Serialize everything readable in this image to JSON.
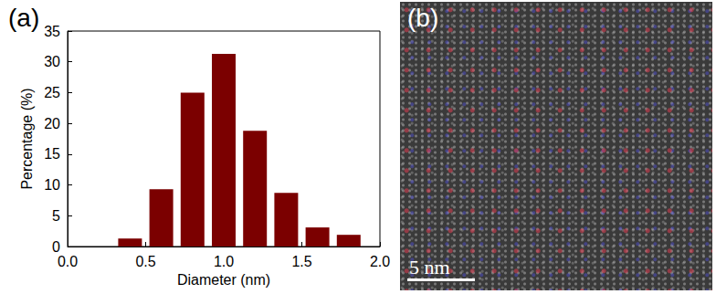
{
  "chart_data": {
    "type": "histogram",
    "title": "(a)",
    "x_label": "Diameter (nm)",
    "y_label": "Percentage (%)",
    "bins": [
      0.3,
      0.5,
      0.7,
      0.9,
      1.1,
      1.3,
      1.5,
      1.7,
      1.9
    ],
    "values": [
      1.3,
      9.3,
      25.0,
      31.3,
      18.8,
      8.7,
      3.1,
      1.9
    ],
    "color": "#7b0000",
    "xlim": [
      0,
      2.0
    ],
    "xticks": [
      {
        "value": 0,
        "label": "0.0"
      },
      {
        "value": 0.5,
        "label": "0.5"
      },
      {
        "value": 1.0,
        "label": "1.0"
      },
      {
        "value": 1.5,
        "label": "1.5"
      },
      {
        "value": 2.0,
        "label": "2.0"
      }
    ],
    "ylim": [
      0,
      35
    ],
    "yticks": [
      0,
      5,
      10,
      15,
      20,
      25,
      30,
      35
    ],
    "grid": false
  },
  "image_panel": {
    "label": "(b)",
    "scale_bar": "5 nm"
  }
}
